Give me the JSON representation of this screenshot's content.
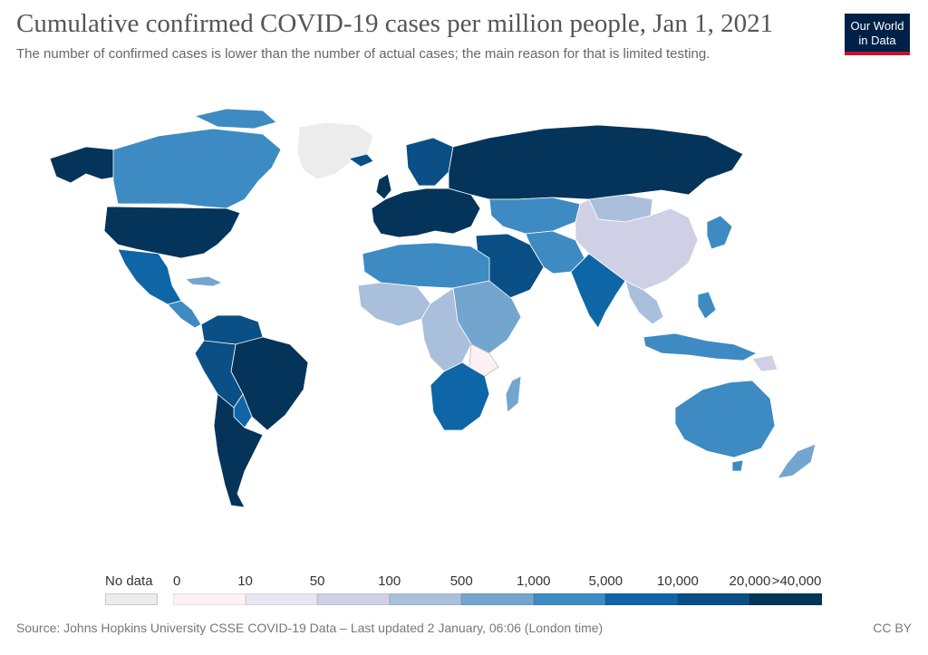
{
  "header": {
    "title": "Cumulative confirmed COVID-19 cases per million people, Jan 1, 2021",
    "subtitle": "The number of confirmed cases is lower than the number of actual cases; the main reason for that is limited testing."
  },
  "logo": {
    "line1": "Our World",
    "line2": "in Data",
    "bg": "#002147",
    "accent": "#c8102e"
  },
  "legend": {
    "no_data": {
      "label": "No data",
      "color": "#ececec"
    },
    "ticks": [
      "0",
      "10",
      "50",
      "100",
      "500",
      "1,000",
      "5,000",
      "10,000",
      "20,000",
      ">40,000"
    ],
    "colors": [
      "#fcf1f5",
      "#e8e6f3",
      "#cfcfe5",
      "#a9bfdc",
      "#74a5cf",
      "#3d8bc2",
      "#0f66a6",
      "#0a4f86",
      "#05345a"
    ]
  },
  "map_colors": {
    "ocean": "#ffffff",
    "nodata": "#ececec",
    "border": "#ffffff"
  },
  "footer": {
    "source": "Source: Johns Hopkins University CSSE COVID-19 Data – Last updated 2 January, 06:06 (London time)",
    "license": "CC BY"
  }
}
